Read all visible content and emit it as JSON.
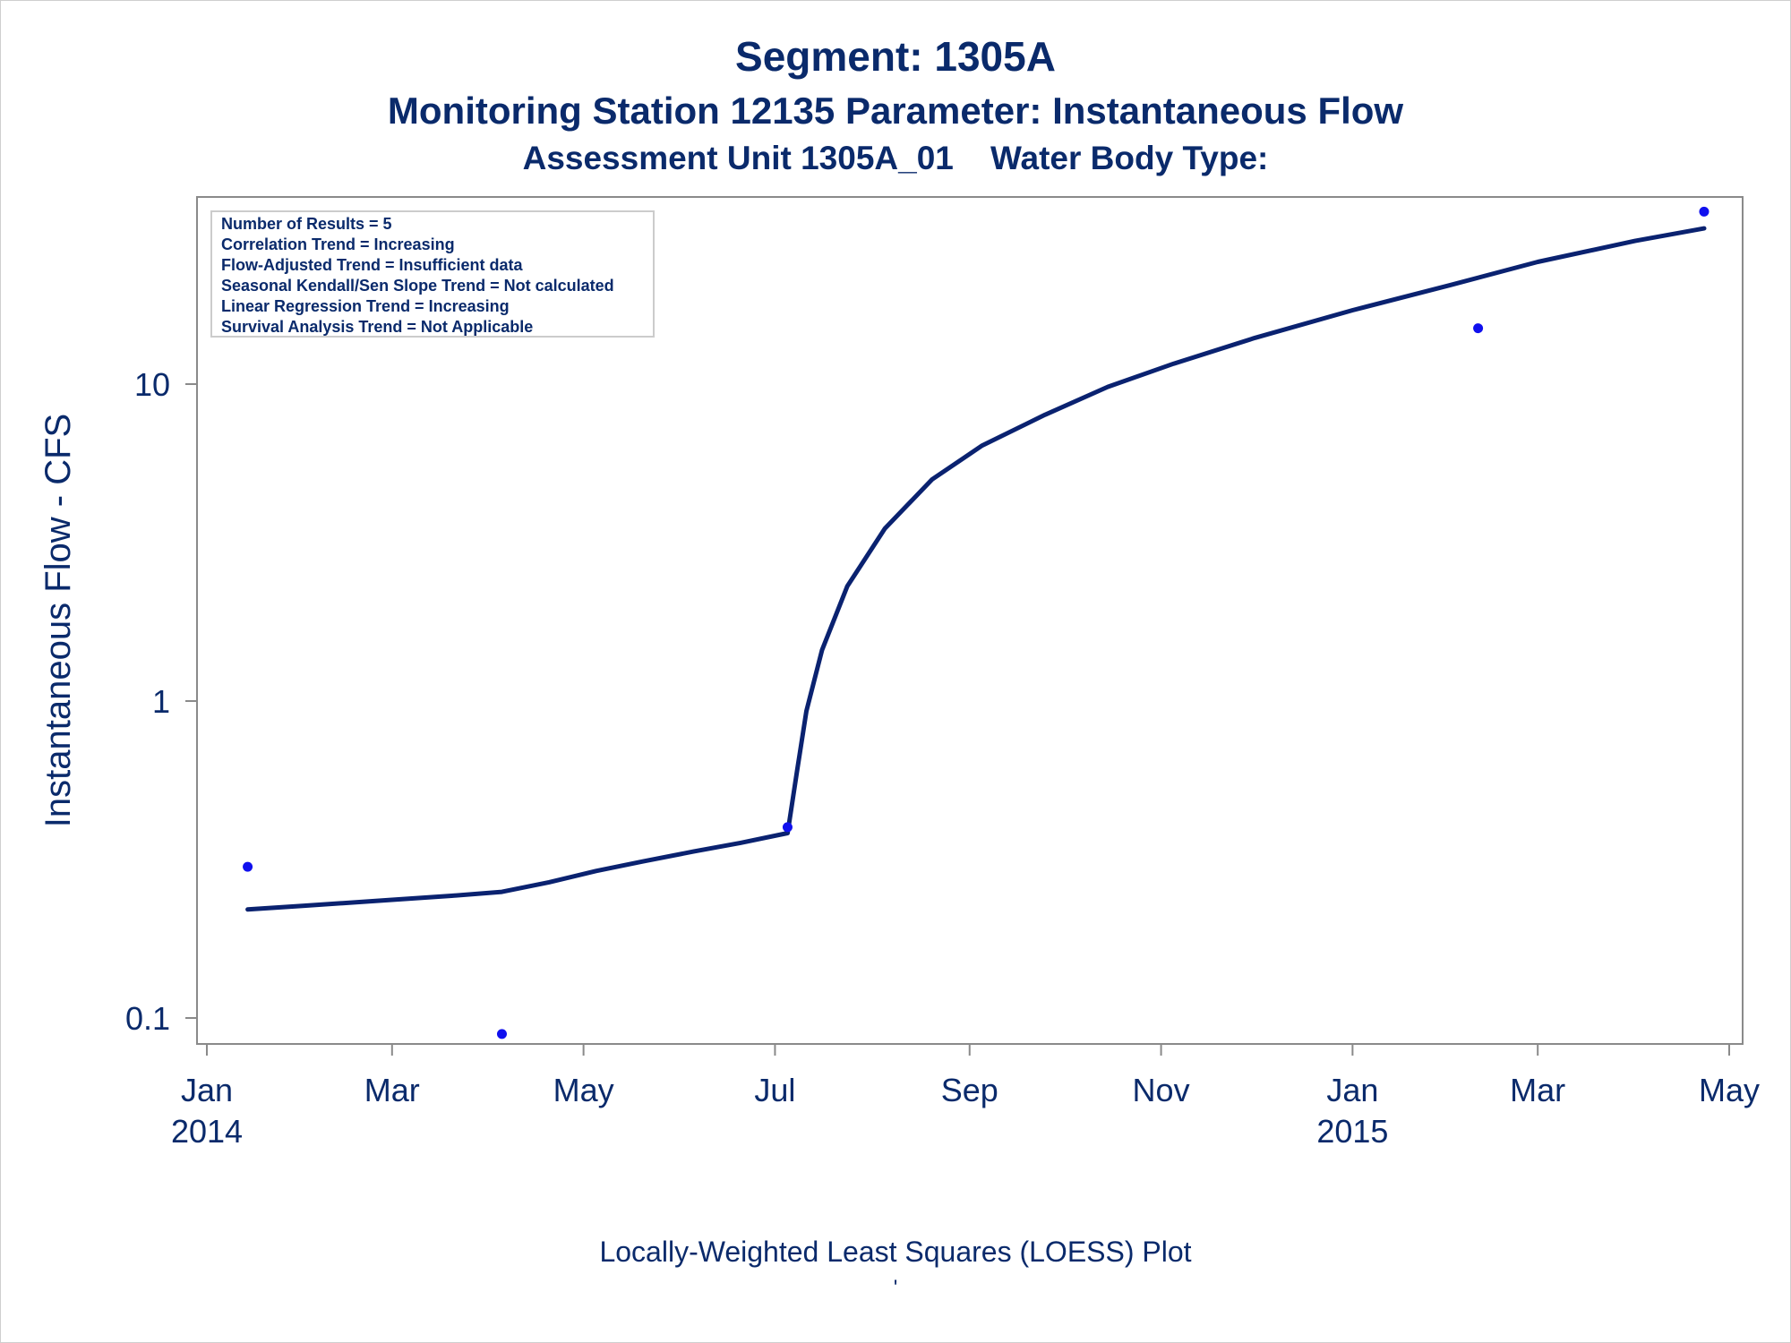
{
  "titles": {
    "line1": "Segment: 1305A",
    "line2": "Monitoring Station 12135 Parameter: Instantaneous Flow",
    "line3": "Assessment Unit 1305A_01    Water Body Type:"
  },
  "footnote": "Locally-Weighted Least Squares (LOESS) Plot",
  "footmark": "'",
  "colors": {
    "text": "#0a2a6b",
    "line": "#0a2270",
    "point": "#1010ee",
    "axis": "#8a8a8a"
  },
  "chart_data": {
    "type": "scatter",
    "ylabel": "Instantaneous Flow - CFS",
    "yscale": "log",
    "ylim": [
      0.085,
      35
    ],
    "xlim": [
      "2014-01-01",
      "2015-05-04"
    ],
    "y_ticks": [
      {
        "value": 0.1,
        "label": "0.1"
      },
      {
        "value": 1,
        "label": "1"
      },
      {
        "value": 10,
        "label": "10"
      }
    ],
    "x_ticks": [
      {
        "date": "2014-01-01",
        "label": "Jan",
        "sublabel": "2014"
      },
      {
        "date": "2014-03-01",
        "label": "Mar",
        "sublabel": ""
      },
      {
        "date": "2014-05-01",
        "label": "May",
        "sublabel": ""
      },
      {
        "date": "2014-07-01",
        "label": "Jul",
        "sublabel": ""
      },
      {
        "date": "2014-09-01",
        "label": "Sep",
        "sublabel": ""
      },
      {
        "date": "2014-11-01",
        "label": "Nov",
        "sublabel": ""
      },
      {
        "date": "2015-01-01",
        "label": "Jan",
        "sublabel": "2015"
      },
      {
        "date": "2015-03-01",
        "label": "Mar",
        "sublabel": ""
      },
      {
        "date": "2015-05-01",
        "label": "May",
        "sublabel": ""
      }
    ],
    "points": [
      {
        "x": "2014-01-14",
        "y": 0.3
      },
      {
        "x": "2014-04-05",
        "y": 0.089
      },
      {
        "x": "2014-07-05",
        "y": 0.4
      },
      {
        "x": "2015-02-10",
        "y": 15
      },
      {
        "x": "2015-04-23",
        "y": 35
      }
    ],
    "loess": [
      {
        "x": "2014-01-14",
        "y": 0.22
      },
      {
        "x": "2014-02-01",
        "y": 0.226
      },
      {
        "x": "2014-03-01",
        "y": 0.236
      },
      {
        "x": "2014-03-20",
        "y": 0.243
      },
      {
        "x": "2014-04-05",
        "y": 0.25
      },
      {
        "x": "2014-04-20",
        "y": 0.268
      },
      {
        "x": "2014-05-05",
        "y": 0.291
      },
      {
        "x": "2014-05-20",
        "y": 0.312
      },
      {
        "x": "2014-06-05",
        "y": 0.335
      },
      {
        "x": "2014-06-20",
        "y": 0.357
      },
      {
        "x": "2014-07-05",
        "y": 0.383
      },
      {
        "x": "2014-07-08",
        "y": 0.6
      },
      {
        "x": "2014-07-11",
        "y": 0.93
      },
      {
        "x": "2014-07-16",
        "y": 1.45
      },
      {
        "x": "2014-07-24",
        "y": 2.3
      },
      {
        "x": "2014-08-05",
        "y": 3.5
      },
      {
        "x": "2014-08-20",
        "y": 5.0
      },
      {
        "x": "2014-09-05",
        "y": 6.4
      },
      {
        "x": "2014-09-25",
        "y": 8.0
      },
      {
        "x": "2014-10-15",
        "y": 9.8
      },
      {
        "x": "2014-11-05",
        "y": 11.6
      },
      {
        "x": "2014-12-01",
        "y": 14.0
      },
      {
        "x": "2015-01-01",
        "y": 17.1
      },
      {
        "x": "2015-02-01",
        "y": 20.5
      },
      {
        "x": "2015-03-01",
        "y": 24.3
      },
      {
        "x": "2015-04-01",
        "y": 28.3
      },
      {
        "x": "2015-04-23",
        "y": 31.0
      }
    ],
    "annotations": [
      "Number of Results = 5",
      "Correlation Trend = Increasing",
      "Flow-Adjusted Trend = Insufficient data",
      "Seasonal Kendall/Sen Slope Trend = Not calculated",
      "Linear Regression Trend = Increasing",
      "Survival Analysis Trend = Not Applicable"
    ]
  }
}
